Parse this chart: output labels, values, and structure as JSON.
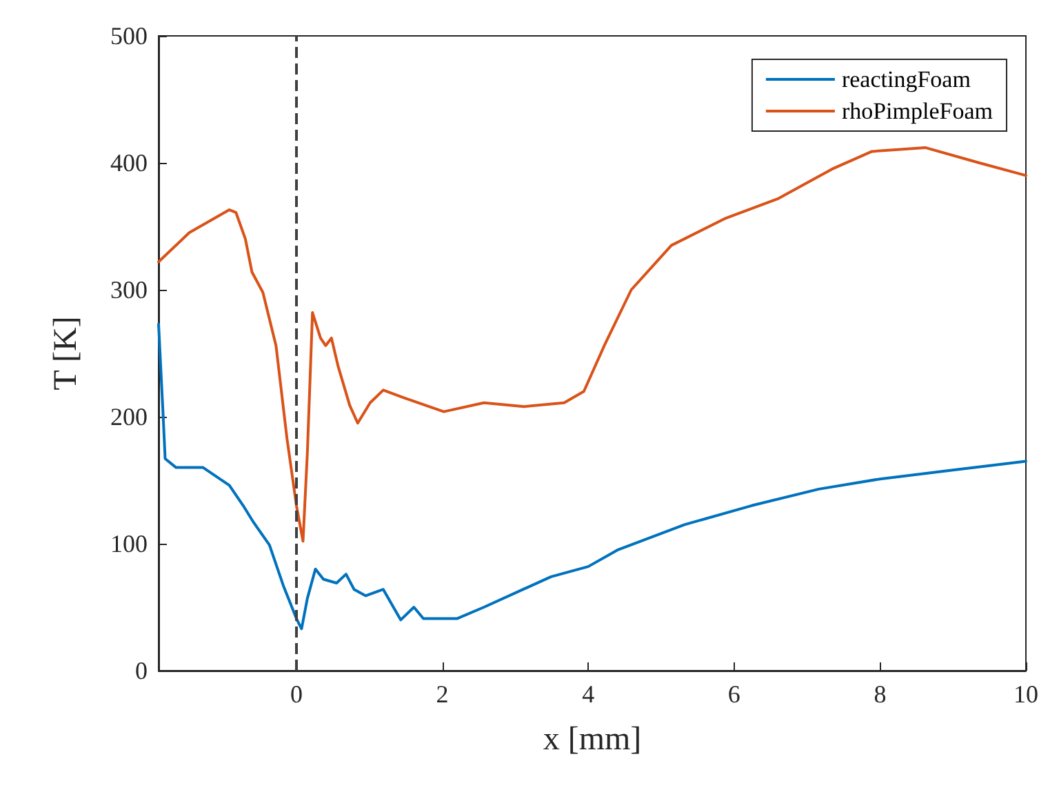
{
  "chart_data": {
    "type": "line",
    "xlabel": "x [mm]",
    "ylabel": "T [K]",
    "xlim": [
      -1.89,
      10
    ],
    "ylim": [
      0,
      500
    ],
    "xticks": [
      0,
      2,
      4,
      6,
      8,
      10
    ],
    "yticks": [
      0,
      100,
      200,
      300,
      400,
      500
    ],
    "grid": false,
    "legend": "top right",
    "marker": "none",
    "line_style": "solid",
    "ref_lines": [
      {
        "axis": "x",
        "value": 0,
        "color": "#404040",
        "line_style": "dashed"
      }
    ],
    "series": [
      {
        "name": "reactingFoam",
        "color": "#0072bd",
        "x": [
          -1.89,
          -1.83,
          -1.8,
          -1.65,
          -1.28,
          -0.92,
          -0.73,
          -0.59,
          -0.37,
          -0.18,
          0,
          0.07,
          0.15,
          0.26,
          0.37,
          0.55,
          0.68,
          0.79,
          0.95,
          1.19,
          1.32,
          1.43,
          1.61,
          1.74,
          2.2,
          2.57,
          3.49,
          4,
          4.4,
          5.32,
          6.24,
          7.16,
          8,
          9,
          10
        ],
        "values": [
          273,
          204,
          167,
          160,
          160,
          146,
          130,
          117,
          99,
          67,
          41,
          33,
          57,
          80,
          72,
          69,
          76,
          64,
          59,
          64,
          51,
          40,
          50,
          41,
          41,
          50,
          74,
          82,
          95,
          115,
          130,
          143,
          151,
          158,
          165
        ]
      },
      {
        "name": "rhoPimpleFoam",
        "color": "#d95319",
        "x": [
          -1.89,
          -1.47,
          -0.92,
          -0.83,
          -0.7,
          -0.61,
          -0.46,
          -0.28,
          -0.13,
          0,
          0.09,
          0.15,
          0.22,
          0.33,
          0.4,
          0.48,
          0.57,
          0.73,
          0.84,
          1.01,
          1.19,
          1.47,
          2.02,
          2.57,
          3.12,
          3.67,
          3.94,
          4.22,
          4.59,
          5.14,
          5.87,
          6.61,
          7.34,
          7.89,
          8.62,
          9.36,
          9.94,
          10
        ],
        "values": [
          322,
          345,
          363,
          361,
          340,
          314,
          298,
          256,
          183,
          130,
          102,
          172,
          282,
          262,
          256,
          262,
          240,
          209,
          195,
          211,
          221,
          215,
          204,
          211,
          208,
          211,
          220,
          256,
          300,
          335,
          356,
          372,
          395,
          409,
          412,
          400,
          391,
          390
        ]
      }
    ]
  }
}
